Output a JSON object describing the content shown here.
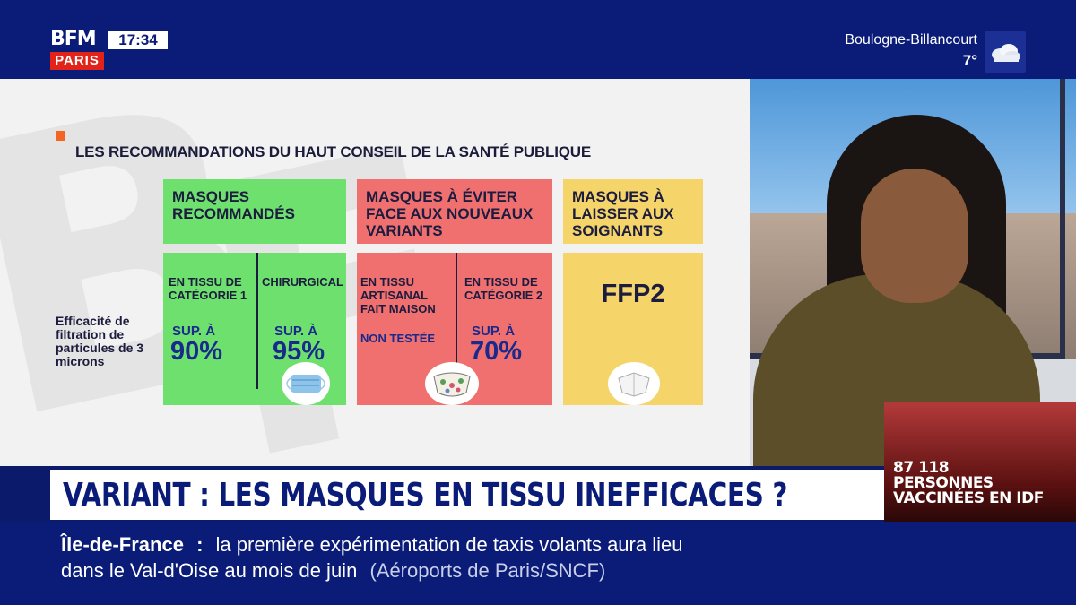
{
  "channel": {
    "logo_top": "BFM",
    "logo_bottom": "PARIS",
    "time": "17:34"
  },
  "weather": {
    "city": "Boulogne-Billancourt",
    "temperature": "7°",
    "icon": "cloud-icon"
  },
  "graphic": {
    "title": "LES RECOMMANDATIONS DU HAUT CONSEIL DE LA SANTÉ PUBLIQUE",
    "row_label": "Efficacité de filtration de particules de 3 microns",
    "columns": [
      {
        "header": "MASQUES RECOMMANDÉS",
        "color": "#6de06d",
        "items": [
          {
            "label": "EN TISSU DE CATÉGORIE 1",
            "prefix": "SUP. À",
            "value": "90%"
          },
          {
            "label": "CHIRURGICAL",
            "prefix": "SUP. À",
            "value": "95%"
          }
        ]
      },
      {
        "header": "MASQUES À ÉVITER FACE AUX NOUVEAUX VARIANTS",
        "color": "#f07070",
        "items": [
          {
            "label": "EN TISSU ARTISANAL FAIT MAISON",
            "note": "NON TESTÉE"
          },
          {
            "label": "EN TISSU DE CATÉGORIE 2",
            "prefix": "SUP. À",
            "value": "70%"
          }
        ]
      },
      {
        "header": "MASQUES À LAISSER AUX SOIGNANTS",
        "color": "#f5d56a",
        "items": [
          {
            "label": "FFP2"
          }
        ]
      }
    ]
  },
  "inset": {
    "line1": "87 118",
    "line2": "PERSONNES",
    "line3": "VACCINÉES EN IDF"
  },
  "headline": "VARIANT : LES MASQUES EN TISSU INEFFICACES ?",
  "ticker": {
    "region": "Île-de-France",
    "separator": ":",
    "text1": "la première expérimentation de taxis volants aura lieu",
    "text2": "dans le Val-d'Oise au mois de juin",
    "source": "(Aéroports de Paris/SNCF)"
  }
}
